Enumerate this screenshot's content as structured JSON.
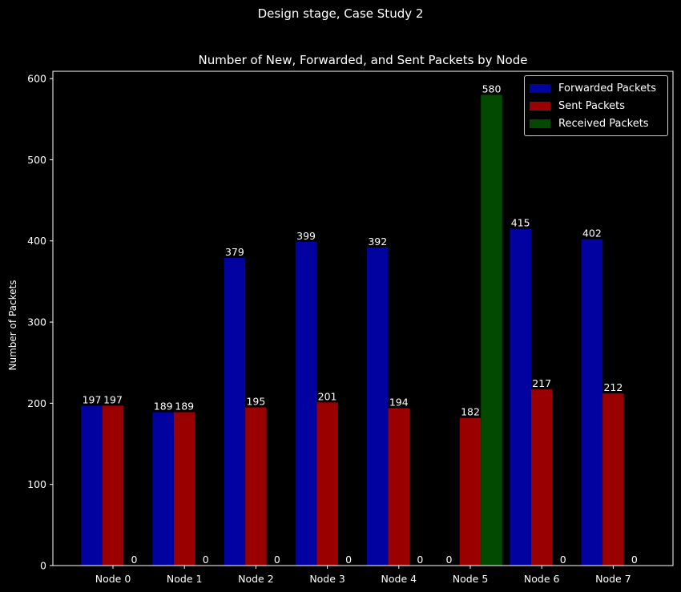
{
  "suptitle": "Design stage, Case Study 2",
  "chart_data": {
    "type": "bar",
    "title": "Number of New, Forwarded, and Sent Packets by Node",
    "xlabel": "",
    "ylabel": "Number of Packets",
    "categories": [
      "Node 0",
      "Node 1",
      "Node 2",
      "Node 3",
      "Node 4",
      "Node 5",
      "Node 6",
      "Node 7"
    ],
    "series": [
      {
        "name": "Forwarded Packets",
        "values": [
          197,
          189,
          379,
          399,
          392,
          0,
          415,
          402
        ],
        "color": "#0202a0"
      },
      {
        "name": "Sent Packets",
        "values": [
          197,
          189,
          195,
          201,
          194,
          182,
          217,
          212
        ],
        "color": "#9b0000"
      },
      {
        "name": "Received Packets",
        "values": [
          0,
          0,
          0,
          0,
          0,
          580,
          0,
          0
        ],
        "color": "#024a02"
      }
    ],
    "ylim": [
      0,
      609
    ],
    "yticks": [
      0,
      100,
      200,
      300,
      400,
      500,
      600
    ],
    "grid": false,
    "legend_position": "top-right"
  }
}
